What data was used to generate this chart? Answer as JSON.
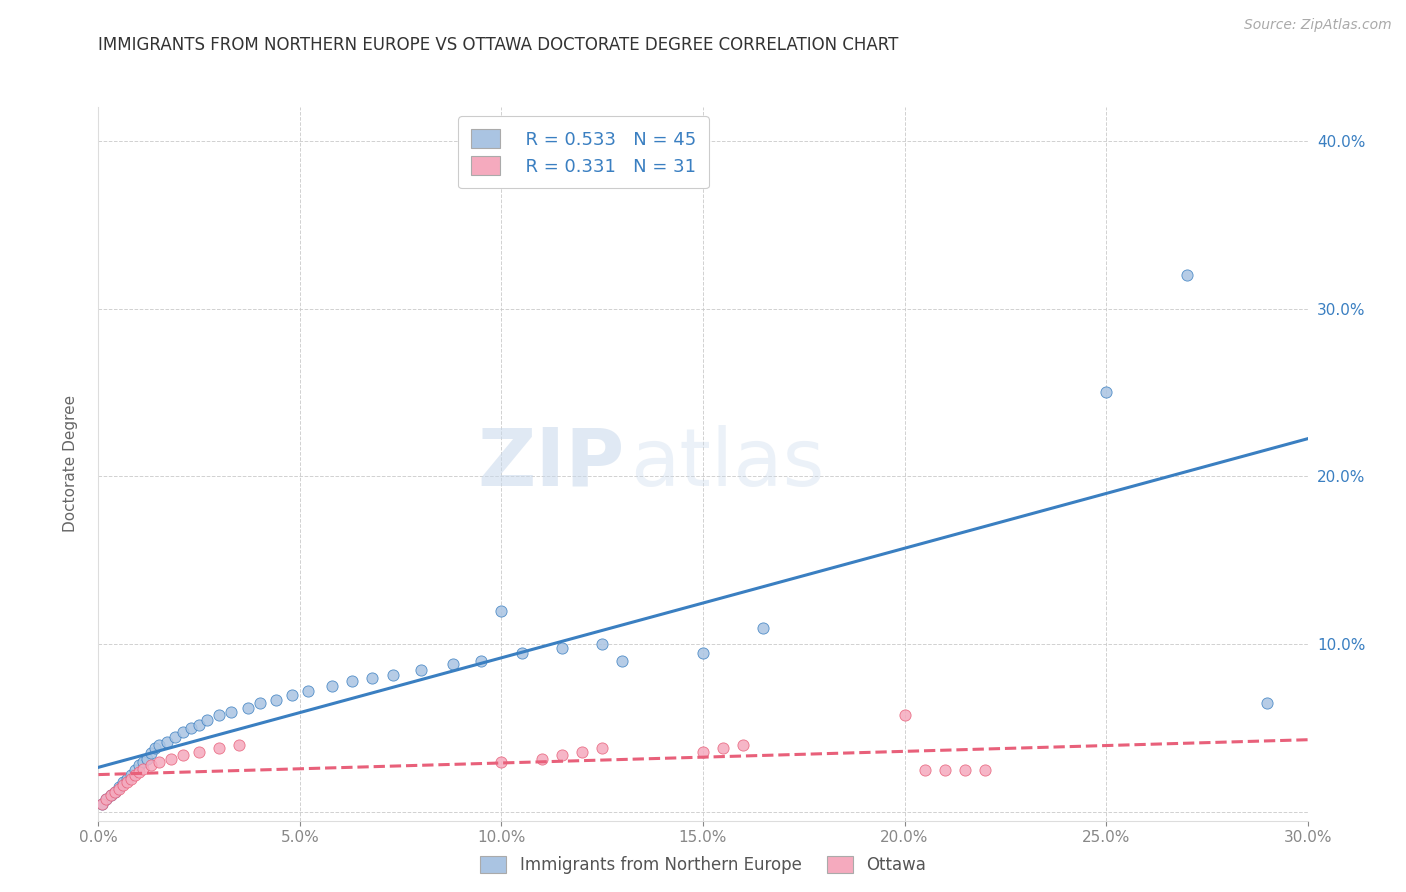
{
  "title": "IMMIGRANTS FROM NORTHERN EUROPE VS OTTAWA DOCTORATE DEGREE CORRELATION CHART",
  "source_text": "Source: ZipAtlas.com",
  "ylabel": "Doctorate Degree",
  "xlim": [
    0.0,
    0.3
  ],
  "ylim": [
    -0.005,
    0.42
  ],
  "xticks": [
    0.0,
    0.05,
    0.1,
    0.15,
    0.2,
    0.25,
    0.3
  ],
  "yticks": [
    0.0,
    0.1,
    0.2,
    0.3,
    0.4
  ],
  "xticklabels": [
    "0.0%",
    "5.0%",
    "10.0%",
    "15.0%",
    "20.0%",
    "25.0%",
    "30.0%"
  ],
  "yticklabels_left": [
    "",
    "",
    "",
    "",
    ""
  ],
  "yticklabels_right": [
    "",
    "10.0%",
    "20.0%",
    "30.0%",
    "40.0%"
  ],
  "series1_color": "#aac4e2",
  "series2_color": "#f5aabe",
  "line1_color": "#3a7fc1",
  "line2_color": "#e8607a",
  "background_color": "#ffffff",
  "watermark_zip": "ZIP",
  "watermark_atlas": "atlas",
  "legend_series1_label": "Immigrants from Northern Europe",
  "legend_series2_label": "Ottawa",
  "legend_r1": "R = 0.533",
  "legend_n1": "N = 45",
  "legend_r2": "R = 0.331",
  "legend_n2": "N = 31",
  "series1_x": [
    0.001,
    0.002,
    0.003,
    0.004,
    0.005,
    0.006,
    0.007,
    0.008,
    0.009,
    0.01,
    0.011,
    0.012,
    0.013,
    0.014,
    0.015,
    0.017,
    0.019,
    0.021,
    0.023,
    0.025,
    0.027,
    0.03,
    0.033,
    0.037,
    0.04,
    0.044,
    0.048,
    0.052,
    0.058,
    0.063,
    0.068,
    0.073,
    0.08,
    0.088,
    0.095,
    0.105,
    0.115,
    0.125,
    0.15,
    0.165,
    0.1,
    0.13,
    0.27,
    0.25,
    0.29
  ],
  "series1_y": [
    0.005,
    0.008,
    0.01,
    0.012,
    0.015,
    0.018,
    0.02,
    0.022,
    0.025,
    0.028,
    0.03,
    0.032,
    0.035,
    0.038,
    0.04,
    0.042,
    0.045,
    0.048,
    0.05,
    0.052,
    0.055,
    0.058,
    0.06,
    0.062,
    0.065,
    0.067,
    0.07,
    0.072,
    0.075,
    0.078,
    0.08,
    0.082,
    0.085,
    0.088,
    0.09,
    0.095,
    0.098,
    0.1,
    0.095,
    0.11,
    0.12,
    0.09,
    0.32,
    0.25,
    0.065
  ],
  "series2_x": [
    0.001,
    0.002,
    0.003,
    0.004,
    0.005,
    0.006,
    0.007,
    0.008,
    0.009,
    0.01,
    0.011,
    0.013,
    0.015,
    0.018,
    0.021,
    0.025,
    0.03,
    0.035,
    0.1,
    0.11,
    0.115,
    0.12,
    0.125,
    0.15,
    0.155,
    0.16,
    0.2,
    0.205,
    0.21,
    0.215,
    0.22
  ],
  "series2_y": [
    0.005,
    0.008,
    0.01,
    0.012,
    0.014,
    0.016,
    0.018,
    0.02,
    0.022,
    0.024,
    0.026,
    0.028,
    0.03,
    0.032,
    0.034,
    0.036,
    0.038,
    0.04,
    0.03,
    0.032,
    0.034,
    0.036,
    0.038,
    0.036,
    0.038,
    0.04,
    0.058,
    0.025,
    0.025,
    0.025,
    0.025
  ],
  "grid_color": "#cccccc",
  "title_color": "#333333",
  "title_fontsize": 12,
  "axis_label_color": "#666666",
  "tick_color": "#888888",
  "tick_fontsize": 11,
  "legend_fontsize": 13
}
